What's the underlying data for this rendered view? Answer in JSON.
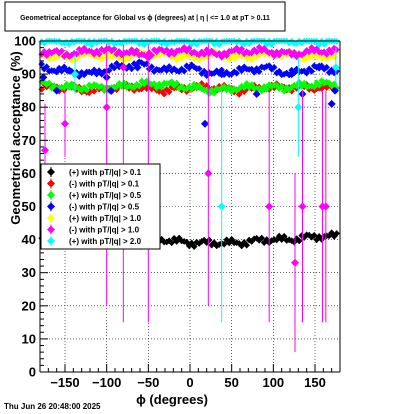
{
  "chart_data": {
    "type": "scatter",
    "title": "Geometrical acceptance for Global vs ϕ (degrees) at | η | <= 1.0 at pT > 0.11",
    "xlabel": "ϕ (degrees)",
    "ylabel": "Geometrical acceptance (%)",
    "xlim": [
      -180,
      180
    ],
    "ylim": [
      0,
      100
    ],
    "x_ticks": [
      -150,
      -100,
      -50,
      0,
      50,
      100,
      150
    ],
    "x_tick_labels": [
      "−150",
      "−100",
      "−50",
      "0",
      "50",
      "100",
      "150"
    ],
    "y_ticks": [
      0,
      10,
      20,
      30,
      40,
      50,
      60,
      70,
      80,
      90,
      100
    ],
    "y_tick_labels": [
      "0",
      "10",
      "20",
      "30",
      "40",
      "50",
      "60",
      "70",
      "80",
      "90",
      "100"
    ],
    "grid": true,
    "legend_position": "middle-left",
    "series": [
      {
        "name": "(+) with pT/|q| > 0.1",
        "color": "#000000",
        "band": {
          "x": [
            -180,
            -150,
            -120,
            -90,
            -60,
            -30,
            0,
            30,
            60,
            90,
            120,
            150,
            180
          ],
          "y": [
            41,
            40,
            40,
            40,
            39,
            40,
            39,
            39,
            39,
            40,
            40,
            41,
            41
          ]
        },
        "points": []
      },
      {
        "name": "(-) with pT/|q| > 0.1",
        "color": "#ff0000",
        "band": {
          "x": [
            -180,
            -150,
            -120,
            -90,
            -60,
            -30,
            0,
            30,
            60,
            90,
            120,
            150,
            180
          ],
          "y": [
            86,
            86,
            85,
            86,
            86,
            85,
            86,
            86,
            85,
            86,
            86,
            86,
            86
          ]
        },
        "points": []
      },
      {
        "name": "(+) with pT/|q| > 0.5",
        "color": "#00ff00",
        "band": {
          "x": [
            -180,
            -150,
            -120,
            -90,
            -60,
            -30,
            0,
            30,
            60,
            90,
            120,
            150,
            180
          ],
          "y": [
            87,
            86,
            86,
            86,
            87,
            87,
            86,
            85,
            86,
            86,
            86,
            87,
            87
          ]
        },
        "points": []
      },
      {
        "name": "(-) with pT/|q| > 0.5",
        "color": "#0000ff",
        "band": {
          "x": [
            -180,
            -150,
            -120,
            -90,
            -60,
            -30,
            0,
            30,
            60,
            90,
            120,
            150,
            180
          ],
          "y": [
            92,
            91,
            90,
            92,
            93,
            91,
            92,
            90,
            91,
            92,
            90,
            92,
            91
          ]
        },
        "points": [
          {
            "x": -176,
            "y": 89
          },
          {
            "x": -160,
            "y": 85
          },
          {
            "x": -145,
            "y": 91
          },
          {
            "x": -100,
            "y": 89
          },
          {
            "x": -95,
            "y": 85
          },
          {
            "x": -63,
            "y": 92
          },
          {
            "x": 18,
            "y": 75
          },
          {
            "x": 38,
            "y": 90
          },
          {
            "x": 80,
            "y": 84
          },
          {
            "x": 122,
            "y": 90
          },
          {
            "x": 135,
            "y": 84
          },
          {
            "x": 155,
            "y": 92
          },
          {
            "x": 170,
            "y": 81
          },
          {
            "x": 174,
            "y": 85
          }
        ]
      },
      {
        "name": "(+) with pT/|q| > 1.0",
        "color": "#ffff00",
        "band": {
          "x": [
            -180,
            -150,
            -120,
            -90,
            -60,
            -30,
            0,
            30,
            60,
            90,
            120,
            150,
            180
          ],
          "y": [
            96,
            95,
            96,
            95,
            96,
            96,
            95,
            96,
            95,
            96,
            96,
            95,
            96
          ]
        },
        "points": []
      },
      {
        "name": "(-) with pT/|q| > 1.0",
        "color": "#ff00ff",
        "band": {
          "x": [
            -180,
            -150,
            -120,
            -90,
            -60,
            -30,
            0,
            30,
            60,
            90,
            120,
            150,
            180
          ],
          "y": [
            97,
            96,
            97,
            97,
            96,
            97,
            97,
            96,
            97,
            97,
            96,
            97,
            97
          ]
        },
        "points": [
          {
            "x": -174,
            "y": 67,
            "err_lo": 14,
            "err_hi": 14
          },
          {
            "x": -150,
            "y": 75,
            "err_lo": 10,
            "err_hi": 10
          },
          {
            "x": -100,
            "y": 80,
            "err_lo": 60,
            "err_hi": 20
          },
          {
            "x": -80,
            "y": 92,
            "err_lo": 77,
            "err_hi": 8
          },
          {
            "x": -50,
            "y": 95,
            "err_lo": 80,
            "err_hi": 5
          },
          {
            "x": 22,
            "y": 60,
            "err_lo": 40,
            "err_hi": 40
          },
          {
            "x": 95,
            "y": 50,
            "err_lo": 35,
            "err_hi": 35
          },
          {
            "x": 126,
            "y": 33,
            "err_lo": 27,
            "err_hi": 27
          },
          {
            "x": 135,
            "y": 50,
            "err_lo": 35,
            "err_hi": 35
          },
          {
            "x": 159,
            "y": 50,
            "err_lo": 35,
            "err_hi": 35
          },
          {
            "x": 163,
            "y": 50,
            "err_lo": 35,
            "err_hi": 35
          }
        ]
      },
      {
        "name": "(+) with pT/|q| > 2.0",
        "color": "#00ffff",
        "band": {
          "x": [
            -180,
            -150,
            -120,
            -90,
            -60,
            -30,
            0,
            30,
            60,
            90,
            120,
            150,
            180
          ],
          "y": [
            100,
            100,
            100,
            100,
            100,
            100,
            100,
            100,
            100,
            100,
            100,
            100,
            100
          ]
        },
        "points": [
          {
            "x": -138,
            "y": 90,
            "err_lo": 6,
            "err_hi": 6
          },
          {
            "x": 38,
            "y": 50,
            "err_lo": 35,
            "err_hi": 35
          },
          {
            "x": 130,
            "y": 80,
            "err_lo": 15,
            "err_hi": 15
          },
          {
            "x": 175,
            "y": 92,
            "err_lo": 6,
            "err_hi": 6
          }
        ]
      }
    ]
  },
  "footer": {
    "timestamp": "Thu Jun 26 20:48:00 2025"
  }
}
